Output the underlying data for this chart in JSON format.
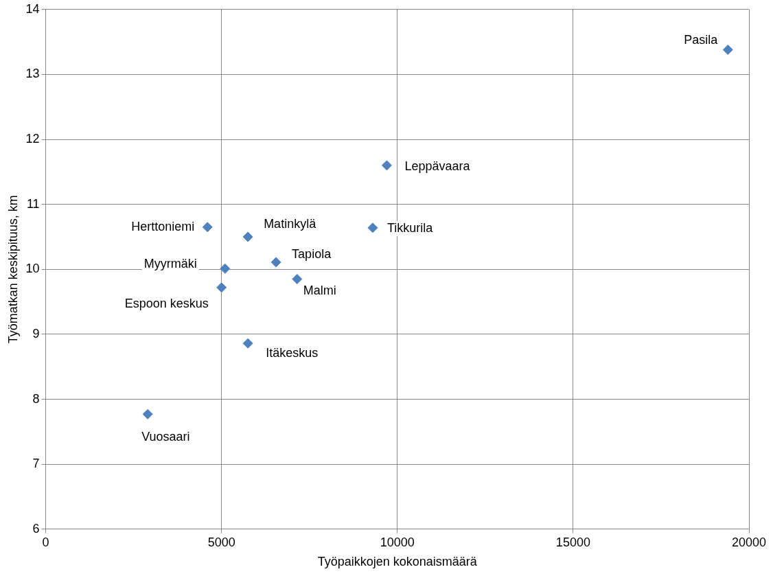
{
  "chart_data": {
    "type": "scatter",
    "xlabel": "Työpaikkojen kokonaismäärä",
    "ylabel": "Työmatkan keskipituus, km",
    "x": [
      19400,
      9700,
      9300,
      4600,
      5750,
      6550,
      5100,
      7150,
      5000,
      5750,
      2900
    ],
    "series": [
      {
        "color": "#4f81bd",
        "values": [
          13.38,
          11.6,
          10.64,
          10.65,
          10.5,
          10.11,
          10.01,
          9.85,
          9.72,
          8.86,
          7.77
        ]
      }
    ],
    "xlim": [
      0,
      20000
    ],
    "xticks": [
      0,
      5000,
      10000,
      15000,
      20000
    ],
    "ylim": [
      6,
      14
    ],
    "yticks": [
      6,
      7,
      8,
      9,
      10,
      11,
      12,
      13,
      14
    ],
    "grid": true,
    "legend": false,
    "marker": "diamond",
    "annotations": [
      {
        "text": "Pasila",
        "x": 19400,
        "y": 13.38
      },
      {
        "text": "Leppävaara",
        "x": 9700,
        "y": 11.6
      },
      {
        "text": "Tikkurila",
        "x": 9300,
        "y": 10.64
      },
      {
        "text": "Herttoniemi",
        "x": 4600,
        "y": 10.65
      },
      {
        "text": "Matinkylä",
        "x": 5750,
        "y": 10.5
      },
      {
        "text": "Tapiola",
        "x": 6550,
        "y": 10.11
      },
      {
        "text": "Myyrmäki",
        "x": 5100,
        "y": 10.01
      },
      {
        "text": "Malmi",
        "x": 7150,
        "y": 9.85
      },
      {
        "text": "Espoon keskus",
        "x": 5000,
        "y": 9.72
      },
      {
        "text": "Itäkeskus",
        "x": 5750,
        "y": 8.86
      },
      {
        "text": "Vuosaari",
        "x": 2900,
        "y": 7.77
      }
    ]
  }
}
